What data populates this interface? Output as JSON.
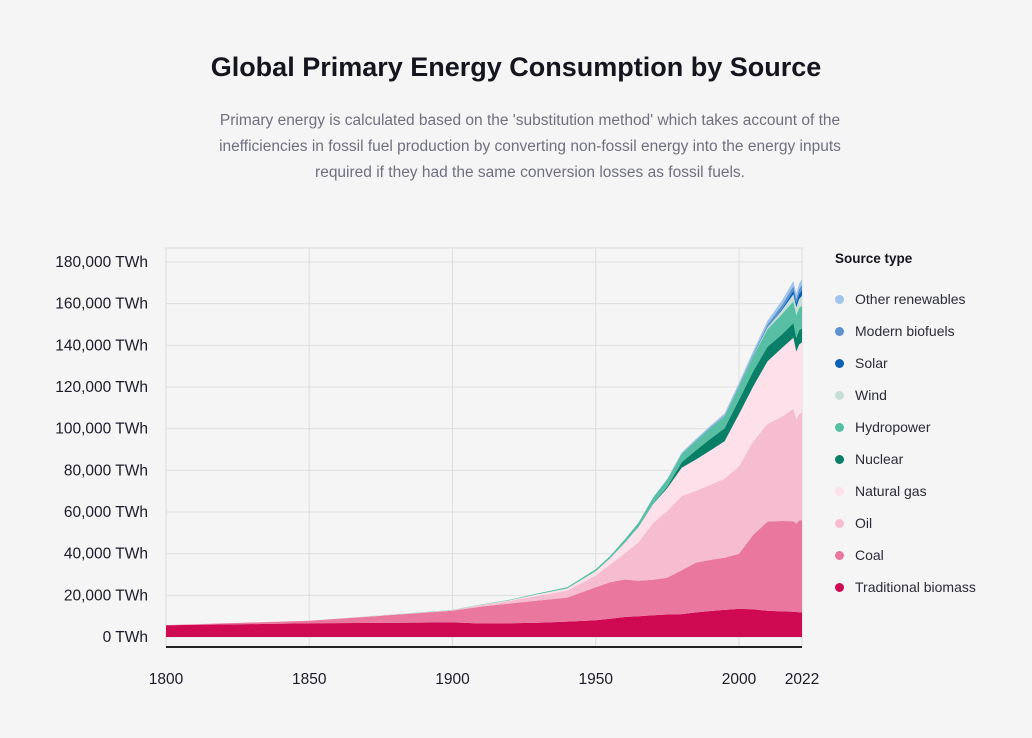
{
  "chart_data": {
    "type": "area",
    "stacked": true,
    "title": "Global Primary Energy Consumption by Source",
    "subtitle": "Primary energy is calculated based on the 'substitution method' which takes account of the inefficiencies in fossil fuel production by converting non-fossil energy into the energy inputs required if they had the same conversion losses as fossil fuels.",
    "xlabel": "",
    "ylabel": "",
    "xlim": [
      1800,
      2022
    ],
    "ylim": [
      0,
      180000
    ],
    "x_ticks": [
      1800,
      1850,
      1900,
      1950,
      2000,
      2022
    ],
    "y_ticks": [
      {
        "value": 0,
        "label": "0 TWh"
      },
      {
        "value": 20000,
        "label": "20,000 TWh"
      },
      {
        "value": 40000,
        "label": "40,000 TWh"
      },
      {
        "value": 60000,
        "label": "60,000 TWh"
      },
      {
        "value": 80000,
        "label": "80,000 TWh"
      },
      {
        "value": 100000,
        "label": "100,000 TWh"
      },
      {
        "value": 120000,
        "label": "120,000 TWh"
      },
      {
        "value": 140000,
        "label": "140,000 TWh"
      },
      {
        "value": 160000,
        "label": "160,000 TWh"
      },
      {
        "value": 180000,
        "label": "180,000 TWh"
      }
    ],
    "grid": true,
    "legend_title": "Source type",
    "legend_position": "right",
    "x": [
      1800,
      1850,
      1900,
      1910,
      1920,
      1930,
      1940,
      1950,
      1955,
      1960,
      1965,
      1970,
      1975,
      1980,
      1985,
      1990,
      1995,
      2000,
      2005,
      2010,
      2015,
      2019,
      2020,
      2021,
      2022
    ],
    "series": [
      {
        "name": "Traditional biomass",
        "color": "#cf0a53",
        "values": [
          5600,
          6600,
          7000,
          6500,
          6600,
          6800,
          7400,
          8000,
          8800,
          9600,
          10000,
          10400,
          10800,
          11000,
          11800,
          12500,
          13000,
          13500,
          13300,
          12600,
          12300,
          12100,
          12000,
          11900,
          11900
        ]
      },
      {
        "name": "Coal",
        "color": "#ea779e",
        "values": [
          100,
          1200,
          5600,
          8100,
          9500,
          10700,
          11500,
          15900,
          17500,
          18000,
          17000,
          17100,
          17700,
          21000,
          23900,
          24500,
          25000,
          26500,
          35800,
          42800,
          43400,
          43500,
          42400,
          44000,
          44000
        ]
      },
      {
        "name": "Oil",
        "color": "#f6bcd0",
        "values": [
          0,
          0,
          200,
          600,
          1200,
          2300,
          3300,
          5600,
          8500,
          12400,
          18600,
          27200,
          32000,
          35700,
          34500,
          36000,
          38000,
          42000,
          44800,
          47000,
          50000,
          54000,
          50000,
          51000,
          52000
        ]
      },
      {
        "name": "Natural gas",
        "color": "#fde0ea",
        "values": [
          0,
          0,
          100,
          200,
          300,
          800,
          1100,
          2100,
          3000,
          5000,
          7300,
          9000,
          11000,
          13500,
          15000,
          16500,
          18000,
          25000,
          26500,
          30000,
          33000,
          34000,
          32500,
          33500,
          33500
        ]
      },
      {
        "name": "Nuclear",
        "color": "#0a7f68",
        "values": [
          0,
          0,
          0,
          0,
          0,
          0,
          0,
          0,
          0,
          0,
          50,
          200,
          900,
          2700,
          4400,
          5600,
          6200,
          6900,
          7300,
          7000,
          6500,
          7100,
          6700,
          6900,
          6700
        ]
      },
      {
        "name": "Hydropower",
        "color": "#58bfa5",
        "values": [
          0,
          0,
          100,
          200,
          300,
          400,
          600,
          900,
          1100,
          1600,
          2000,
          2900,
          3300,
          4000,
          4600,
          5200,
          5700,
          6400,
          7300,
          8400,
          9700,
          10500,
          10900,
          10600,
          11000
        ]
      },
      {
        "name": "Wind",
        "color": "#c6ded5",
        "values": [
          0,
          0,
          0,
          0,
          0,
          0,
          0,
          0,
          0,
          0,
          0,
          0,
          0,
          0,
          0,
          10,
          20,
          60,
          200,
          800,
          1900,
          3300,
          3700,
          4300,
          4700
        ]
      },
      {
        "name": "Solar",
        "color": "#0a61b6",
        "values": [
          0,
          0,
          0,
          0,
          0,
          0,
          0,
          0,
          0,
          0,
          0,
          0,
          0,
          0,
          0,
          0,
          0,
          5,
          20,
          100,
          600,
          1800,
          2100,
          2600,
          2900
        ]
      },
      {
        "name": "Modern biofuels",
        "color": "#5c92cf",
        "values": [
          0,
          0,
          0,
          0,
          0,
          0,
          0,
          0,
          0,
          0,
          0,
          0,
          0,
          100,
          200,
          300,
          400,
          500,
          700,
          1400,
          1900,
          2200,
          2100,
          2200,
          2300
        ]
      },
      {
        "name": "Other renewables",
        "color": "#a0c4ec",
        "values": [
          0,
          0,
          0,
          0,
          0,
          0,
          0,
          0,
          0,
          100,
          200,
          300,
          400,
          600,
          700,
          800,
          1000,
          1200,
          1400,
          1800,
          2200,
          2400,
          2500,
          2600,
          2700
        ]
      }
    ]
  }
}
